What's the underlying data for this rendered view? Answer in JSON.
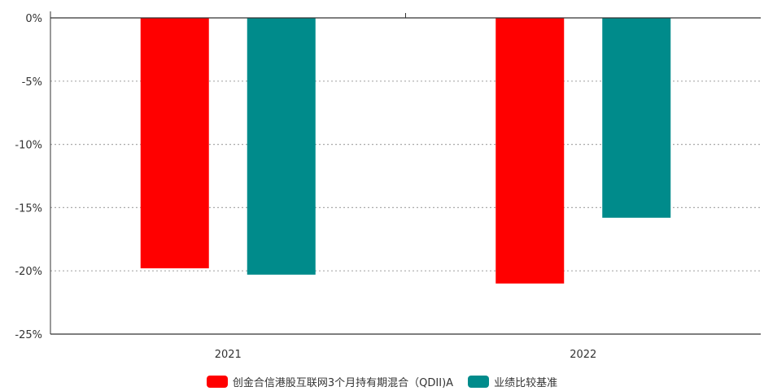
{
  "chart_data": {
    "type": "bar",
    "categories": [
      "2021",
      "2022"
    ],
    "series": [
      {
        "name": "创金合信港股互联网3个月持有期混合（QDII)A",
        "values": [
          -19.8,
          -21.0
        ],
        "color": "#ff0000"
      },
      {
        "name": "业绩比较基准",
        "values": [
          -20.3,
          -15.8
        ],
        "color": "#008b8b"
      }
    ],
    "ylim": [
      -25,
      0
    ],
    "yticks": [
      0,
      -5,
      -10,
      -15,
      -20,
      -25
    ],
    "ytick_labels": [
      "0%",
      "-5%",
      "-10%",
      "-15%",
      "-20%",
      "-25%"
    ],
    "grid": true,
    "legend_position": "bottom-center"
  }
}
